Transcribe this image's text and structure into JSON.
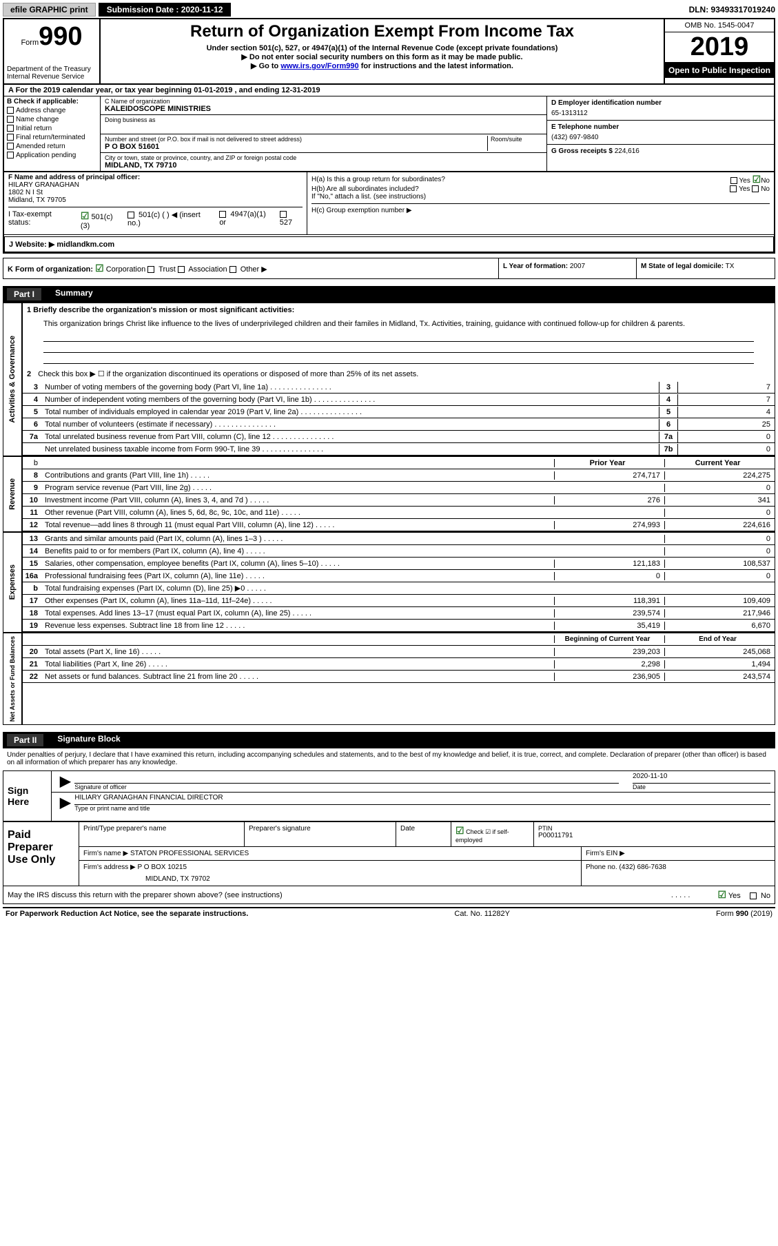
{
  "topbar": {
    "efile": "efile GRAPHIC print",
    "submission_label": "Submission Date : 2020-11-12",
    "dln": "DLN: 93493317019240"
  },
  "header": {
    "form_label": "Form",
    "form_number": "990",
    "dept": "Department of the Treasury",
    "irs": "Internal Revenue Service",
    "title": "Return of Organization Exempt From Income Tax",
    "subtitle": "Under section 501(c), 527, or 4947(a)(1) of the Internal Revenue Code (except private foundations)",
    "note1": "▶ Do not enter social security numbers on this form as it may be made public.",
    "note2_pre": "▶ Go to ",
    "note2_link": "www.irs.gov/Form990",
    "note2_post": " for instructions and the latest information.",
    "omb": "OMB No. 1545-0047",
    "year": "2019",
    "inspection": "Open to Public Inspection"
  },
  "period": "A For the 2019 calendar year, or tax year beginning 01-01-2019   , and ending 12-31-2019",
  "section_b": {
    "label": "B Check if applicable:",
    "items": [
      "Address change",
      "Name change",
      "Initial return",
      "Final return/terminated",
      "Amended return",
      "Application pending"
    ]
  },
  "section_c": {
    "name_label": "C Name of organization",
    "name": "KALEIDOSCOPE MINISTRIES",
    "dba_label": "Doing business as",
    "addr_label": "Number and street (or P.O. box if mail is not delivered to street address)",
    "room_label": "Room/suite",
    "addr": "P O BOX 51601",
    "city_label": "City or town, state or province, country, and ZIP or foreign postal code",
    "city": "MIDLAND, TX  79710"
  },
  "section_d": {
    "label": "D Employer identification number",
    "value": "65-1313112"
  },
  "section_e": {
    "label": "E Telephone number",
    "value": "(432) 697-9840"
  },
  "section_g": {
    "label": "G Gross receipts $",
    "value": "224,616"
  },
  "section_f": {
    "label": "F  Name and address of principal officer:",
    "name": "HILARY GRANAGHAN",
    "addr1": "1802 N I St",
    "addr2": "Midland, TX  79705"
  },
  "section_h": {
    "ha": "H(a)  Is this a group return for subordinates?",
    "hb": "H(b)  Are all subordinates included?",
    "hb_note": "If \"No,\" attach a list. (see instructions)",
    "hc": "H(c)  Group exemption number ▶"
  },
  "section_i": {
    "label": "I  Tax-exempt status:",
    "opt1": "501(c)(3)",
    "opt2": "501(c) (  ) ◀ (insert no.)",
    "opt3": "4947(a)(1) or",
    "opt4": "527"
  },
  "section_j": {
    "label": "J  Website: ▶",
    "value": "midlandkm.com"
  },
  "section_k": {
    "label": "K Form of organization:",
    "opts": [
      "Corporation",
      "Trust",
      "Association",
      "Other ▶"
    ]
  },
  "section_l": {
    "label": "L Year of formation:",
    "value": "2007"
  },
  "section_m": {
    "label": "M State of legal domicile:",
    "value": "TX"
  },
  "part1": {
    "tab": "Part I",
    "title": "Summary"
  },
  "mission": {
    "label": "1  Briefly describe the organization's mission or most significant activities:",
    "text": "This organization brings Christ like influence to the lives of underprivileged children and their familes in Midland, Tx. Activities, training, guidance with continued follow-up for children & parents."
  },
  "governance": {
    "vert": "Activities & Governance",
    "line2": "Check this box ▶ ☐  if the organization discontinued its operations or disposed of more than 25% of its net assets.",
    "rows": [
      {
        "n": "3",
        "t": "Number of voting members of the governing body (Part VI, line 1a)",
        "b": "3",
        "v": "7"
      },
      {
        "n": "4",
        "t": "Number of independent voting members of the governing body (Part VI, line 1b)",
        "b": "4",
        "v": "7"
      },
      {
        "n": "5",
        "t": "Total number of individuals employed in calendar year 2019 (Part V, line 2a)",
        "b": "5",
        "v": "4"
      },
      {
        "n": "6",
        "t": "Total number of volunteers (estimate if necessary)",
        "b": "6",
        "v": "25"
      },
      {
        "n": "7a",
        "t": "Total unrelated business revenue from Part VIII, column (C), line 12",
        "b": "7a",
        "v": "0"
      },
      {
        "n": "",
        "t": "Net unrelated business taxable income from Form 990-T, line 39",
        "b": "7b",
        "v": "0"
      }
    ]
  },
  "revenue": {
    "vert": "Revenue",
    "head_prior": "Prior Year",
    "head_current": "Current Year",
    "rows": [
      {
        "n": "8",
        "t": "Contributions and grants (Part VIII, line 1h)",
        "py": "274,717",
        "cy": "224,275"
      },
      {
        "n": "9",
        "t": "Program service revenue (Part VIII, line 2g)",
        "py": "",
        "cy": "0"
      },
      {
        "n": "10",
        "t": "Investment income (Part VIII, column (A), lines 3, 4, and 7d )",
        "py": "276",
        "cy": "341"
      },
      {
        "n": "11",
        "t": "Other revenue (Part VIII, column (A), lines 5, 6d, 8c, 9c, 10c, and 11e)",
        "py": "",
        "cy": "0"
      },
      {
        "n": "12",
        "t": "Total revenue—add lines 8 through 11 (must equal Part VIII, column (A), line 12)",
        "py": "274,993",
        "cy": "224,616"
      }
    ]
  },
  "expenses": {
    "vert": "Expenses",
    "rows": [
      {
        "n": "13",
        "t": "Grants and similar amounts paid (Part IX, column (A), lines 1–3 )",
        "py": "",
        "cy": "0"
      },
      {
        "n": "14",
        "t": "Benefits paid to or for members (Part IX, column (A), line 4)",
        "py": "",
        "cy": "0"
      },
      {
        "n": "15",
        "t": "Salaries, other compensation, employee benefits (Part IX, column (A), lines 5–10)",
        "py": "121,183",
        "cy": "108,537"
      },
      {
        "n": "16a",
        "t": "Professional fundraising fees (Part IX, column (A), line 11e)",
        "py": "0",
        "cy": "0"
      },
      {
        "n": "b",
        "t": "Total fundraising expenses (Part IX, column (D), line 25) ▶0",
        "py": "SHADED",
        "cy": "SHADED"
      },
      {
        "n": "17",
        "t": "Other expenses (Part IX, column (A), lines 11a–11d, 11f–24e)",
        "py": "118,391",
        "cy": "109,409"
      },
      {
        "n": "18",
        "t": "Total expenses. Add lines 13–17 (must equal Part IX, column (A), line 25)",
        "py": "239,574",
        "cy": "217,946"
      },
      {
        "n": "19",
        "t": "Revenue less expenses. Subtract line 18 from line 12",
        "py": "35,419",
        "cy": "6,670"
      }
    ]
  },
  "netassets": {
    "vert": "Net Assets or Fund Balances",
    "head_begin": "Beginning of Current Year",
    "head_end": "End of Year",
    "rows": [
      {
        "n": "20",
        "t": "Total assets (Part X, line 16)",
        "py": "239,203",
        "cy": "245,068"
      },
      {
        "n": "21",
        "t": "Total liabilities (Part X, line 26)",
        "py": "2,298",
        "cy": "1,494"
      },
      {
        "n": "22",
        "t": "Net assets or fund balances. Subtract line 21 from line 20",
        "py": "236,905",
        "cy": "243,574"
      }
    ]
  },
  "part2": {
    "tab": "Part II",
    "title": "Signature Block"
  },
  "sig": {
    "penalty": "Under penalties of perjury, I declare that I have examined this return, including accompanying schedules and statements, and to the best of my knowledge and belief, it is true, correct, and complete. Declaration of preparer (other than officer) is based on all information of which preparer has any knowledge.",
    "sign_here": "Sign Here",
    "sig_label": "Signature of officer",
    "date_label": "Date",
    "date": "2020-11-10",
    "name": "HILIARY GRANAGHAN  FINANCIAL DIRECTOR",
    "name_label": "Type or print name and title"
  },
  "preparer": {
    "label": "Paid Preparer Use Only",
    "print_label": "Print/Type preparer's name",
    "sig_label": "Preparer's signature",
    "date_label": "Date",
    "check_label": "Check ☑ if self-employed",
    "ptin_label": "PTIN",
    "ptin": "P00011791",
    "firm_name_label": "Firm's name    ▶",
    "firm_name": "STATON PROFESSIONAL SERVICES",
    "firm_ein_label": "Firm's EIN ▶",
    "firm_addr_label": "Firm's address ▶",
    "firm_addr1": "P O BOX 10215",
    "firm_addr2": "MIDLAND, TX  79702",
    "phone_label": "Phone no.",
    "phone": "(432) 686-7638"
  },
  "discuss": "May the IRS discuss this return with the preparer shown above? (see instructions)",
  "footer": {
    "left": "For Paperwork Reduction Act Notice, see the separate instructions.",
    "mid": "Cat. No. 11282Y",
    "right": "Form 990 (2019)"
  },
  "yes": "Yes",
  "no": "No"
}
